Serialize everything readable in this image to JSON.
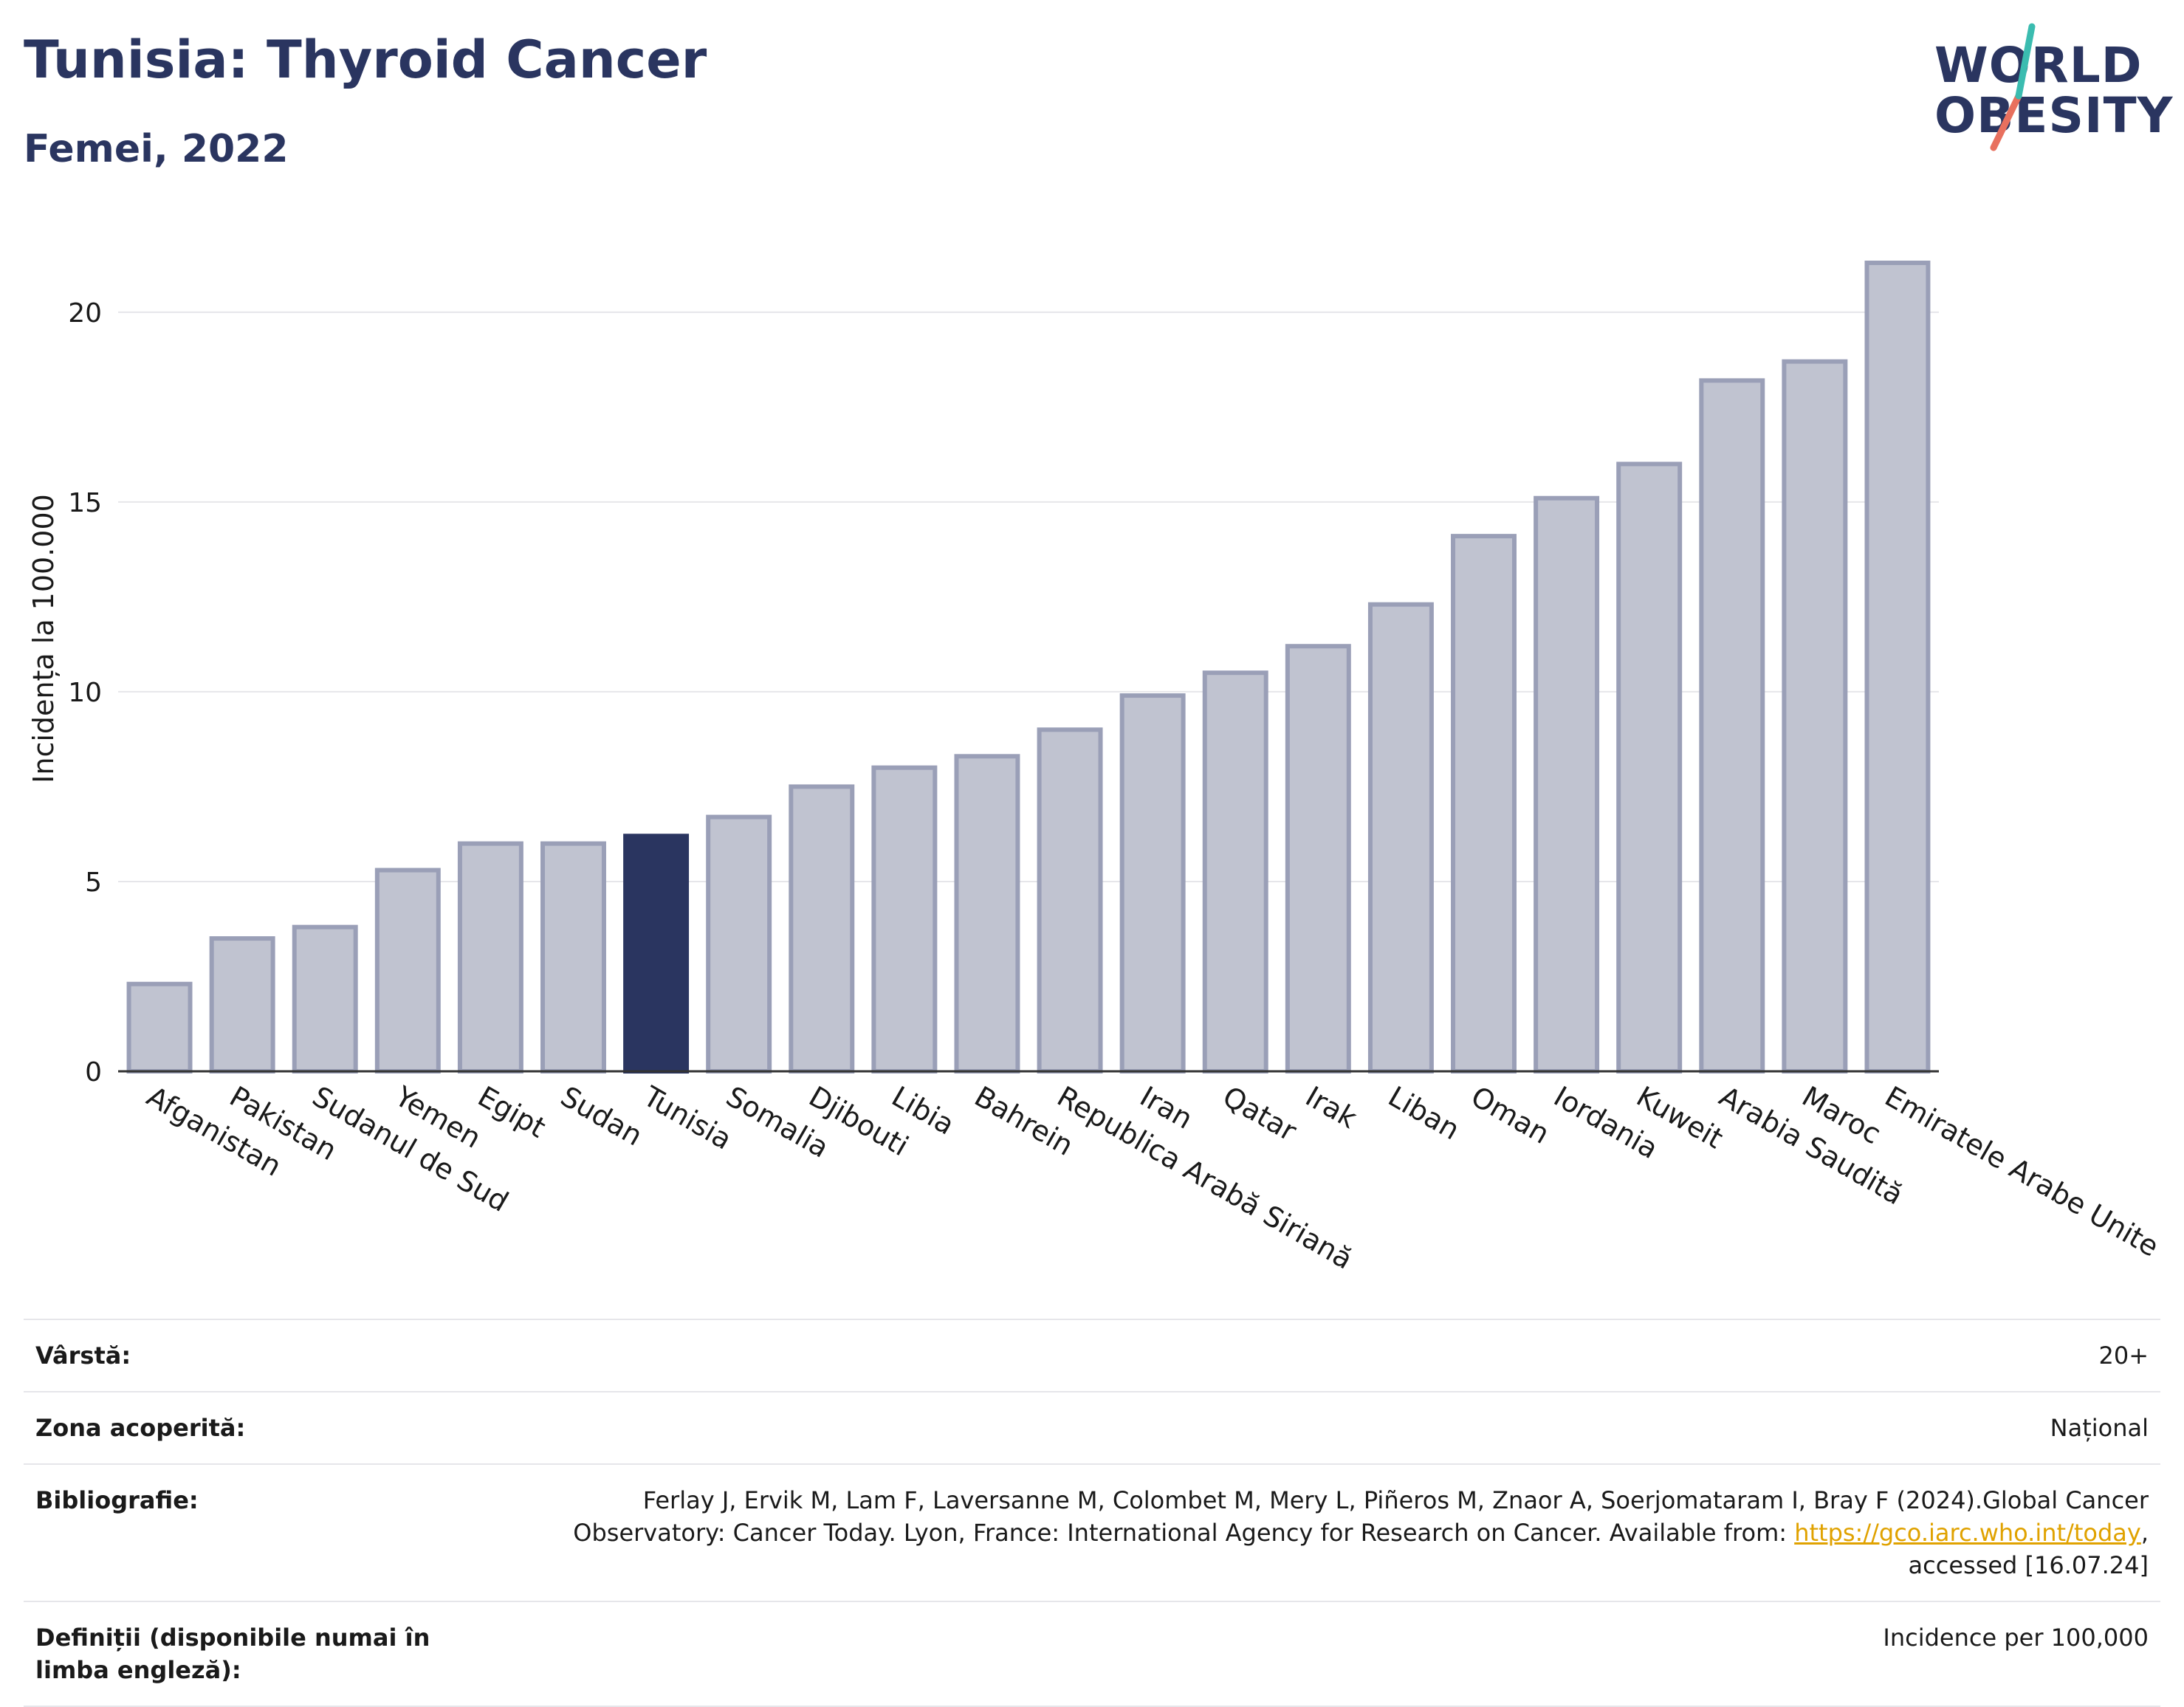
{
  "header": {
    "title": "Tunisia: Thyroid Cancer",
    "subtitle": "Femei, 2022"
  },
  "logo": {
    "line1": "WORLD",
    "line2": "OBESITY"
  },
  "chart_data": {
    "type": "bar",
    "ylabel": "Incidența la 100.000",
    "ylim": [
      0,
      22
    ],
    "yticks": [
      0,
      5,
      10,
      15,
      20
    ],
    "grid": true,
    "highlight": "Tunisia",
    "colors": {
      "bar": "#c0c3d0",
      "bar_edge": "#9a9fb7",
      "highlight": "#2a3560",
      "grid": "#e6e6ea",
      "axis": "#333333"
    },
    "categories": [
      "Afganistan",
      "Pakistan",
      "Sudanul de Sud",
      "Yemen",
      "Egipt",
      "Sudan",
      "Tunisia",
      "Somalia",
      "Djibouti",
      "Libia",
      "Bahrein",
      "Republica Arabă Siriană",
      "Iran",
      "Qatar",
      "Irak",
      "Liban",
      "Oman",
      "Iordania",
      "Kuweit",
      "Arabia Saudită",
      "Maroc",
      "Emiratele Arabe Unite"
    ],
    "values": [
      2.3,
      3.5,
      3.8,
      5.3,
      6.0,
      6.0,
      6.2,
      6.7,
      7.5,
      8.0,
      8.3,
      9.0,
      9.9,
      10.5,
      11.2,
      12.3,
      14.1,
      15.1,
      16.0,
      18.2,
      18.7,
      21.3
    ]
  },
  "meta": [
    {
      "label": "Vârstă:",
      "value": "20+"
    },
    {
      "label": "Zona acoperită:",
      "value": "Național"
    },
    {
      "label": "Bibliografie:",
      "value_pre": "Ferlay J, Ervik M, Lam F, Laversanne M, Colombet M, Mery L, Piñeros M, Znaor A, Soerjomataram I, Bray F (2024).Global Cancer Observatory: Cancer Today. Lyon, France: International Agency for Research on Cancer. Available from: ",
      "link": "https://gco.iarc.who.int/today",
      "value_post": ", accessed [16.07.24]"
    },
    {
      "label": "Definiții (disponibile numai în limba engleză):",
      "value": "Incidence per 100,000"
    }
  ]
}
